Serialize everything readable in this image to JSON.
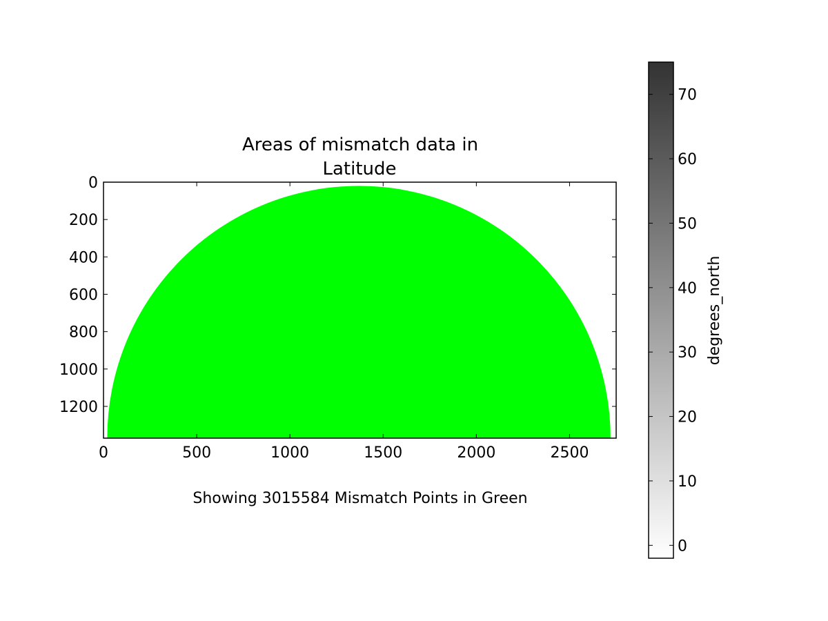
{
  "chart_data": {
    "type": "heatmap",
    "title_lines": [
      "Areas of mismatch data in",
      "Latitude"
    ],
    "xlabel": "Showing 3015584 Mismatch Points in Green",
    "ylabel": "",
    "x_ticks": [
      0,
      500,
      1000,
      1500,
      2000,
      2500
    ],
    "y_ticks": [
      0,
      200,
      400,
      600,
      800,
      1000,
      1200
    ],
    "xlim": [
      0,
      2750
    ],
    "ylim": [
      1370,
      0
    ],
    "y_inverted": true,
    "grid": false,
    "mismatch_region": {
      "shape": "upper half disk",
      "center": [
        1370,
        1370
      ],
      "radius": 1350,
      "color": "#00ff00"
    },
    "colorbar": {
      "label": "degrees_north",
      "ticks": [
        0,
        10,
        20,
        30,
        40,
        50,
        60,
        70
      ],
      "range": [
        -2,
        75
      ],
      "colormap": "Greys",
      "color_low": "#ffffff",
      "color_high": "#333333",
      "placement": "right"
    }
  }
}
